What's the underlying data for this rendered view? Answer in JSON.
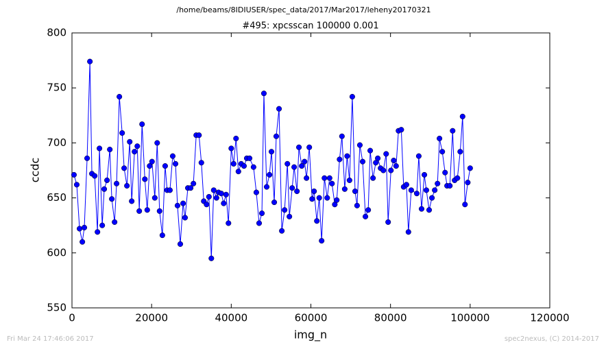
{
  "chart_data": {
    "type": "line",
    "suptitle": "/home/beams/8IDIUSER/spec_data/2017/Mar2017/leheny20170321",
    "title": "#495: xpcsscan 100000 0.001",
    "xlabel": "img_n",
    "ylabel": "ccdc",
    "footer_left": "Fri Mar 24 17:46:06 2017",
    "footer_right": "spec2nexus, (C) 2014-2017",
    "xlim": [
      0,
      120000
    ],
    "xticks": [
      0,
      20000,
      40000,
      60000,
      80000,
      100000,
      120000
    ],
    "ylim": [
      550,
      800
    ],
    "yticks": [
      550,
      600,
      650,
      700,
      750,
      800
    ],
    "x": [
      500,
      1200,
      1900,
      2600,
      3100,
      3800,
      4500,
      5000,
      5700,
      6400,
      6900,
      7600,
      8100,
      8800,
      9500,
      10000,
      10700,
      11200,
      11900,
      12600,
      13100,
      13800,
      14500,
      15000,
      15700,
      16400,
      16900,
      17600,
      18300,
      18900,
      19500,
      20100,
      20800,
      21400,
      22000,
      22700,
      23400,
      23900,
      24600,
      25300,
      26000,
      26500,
      27200,
      27900,
      28400,
      29100,
      29800,
      30500,
      31200,
      31900,
      32500,
      33100,
      33800,
      34400,
      35000,
      35600,
      36300,
      36800,
      37500,
      38100,
      38700,
      39300,
      40000,
      40600,
      41200,
      41800,
      42500,
      43200,
      43900,
      44600,
      45600,
      46300,
      47000,
      47700,
      48200,
      48900,
      49600,
      50100,
      50800,
      51300,
      52000,
      52700,
      53400,
      54100,
      54600,
      55300,
      55800,
      56500,
      57000,
      57700,
      58400,
      58900,
      59600,
      60300,
      60800,
      61500,
      62100,
      62700,
      63400,
      64100,
      64700,
      65300,
      66000,
      66500,
      67200,
      67800,
      68500,
      69100,
      69700,
      70400,
      71100,
      71600,
      72300,
      73000,
      73700,
      74400,
      74900,
      75600,
      76300,
      76800,
      77500,
      78200,
      78900,
      79400,
      80100,
      80800,
      81400,
      82000,
      82700,
      83300,
      84000,
      84500,
      85200,
      86600,
      87100,
      87800,
      88500,
      89000,
      89700,
      90400,
      91100,
      91800,
      92300,
      93000,
      93700,
      94200,
      94900,
      95600,
      96100,
      96800,
      97500,
      98100,
      98700,
      99400,
      100000
    ],
    "series": [
      {
        "name": "ccdc",
        "color": "#0000ff",
        "values": [
          671,
          662,
          622,
          610,
          623,
          686,
          774,
          672,
          670,
          619,
          695,
          625,
          658,
          666,
          694,
          649,
          628,
          663,
          742,
          709,
          677,
          661,
          701,
          647,
          692,
          697,
          638,
          717,
          667,
          639,
          679,
          683,
          650,
          700,
          638,
          616,
          679,
          657,
          657,
          688,
          681,
          643,
          608,
          645,
          632,
          659,
          659,
          663,
          707,
          707,
          682,
          647,
          644,
          651,
          595,
          657,
          650,
          655,
          654,
          645,
          653,
          627,
          695,
          681,
          704,
          674,
          681,
          679,
          686,
          686,
          678,
          655,
          627,
          636,
          745,
          660,
          671,
          692,
          646,
          706,
          731,
          620,
          639,
          681,
          633,
          659,
          678,
          656,
          696,
          679,
          683,
          668,
          696,
          649,
          656,
          629,
          650,
          611,
          668,
          650,
          668,
          663,
          644,
          648,
          685,
          706,
          658,
          688,
          666,
          742,
          656,
          643,
          698,
          683,
          633,
          639,
          693,
          668,
          682,
          686,
          677,
          675,
          690,
          628,
          675,
          684,
          679,
          711,
          712,
          660,
          662,
          619,
          657,
          654,
          688,
          640,
          671,
          657,
          639,
          650,
          657,
          663,
          704,
          692,
          673,
          661,
          661,
          711,
          666,
          668,
          692,
          724,
          644,
          664,
          677
        ]
      }
    ]
  }
}
